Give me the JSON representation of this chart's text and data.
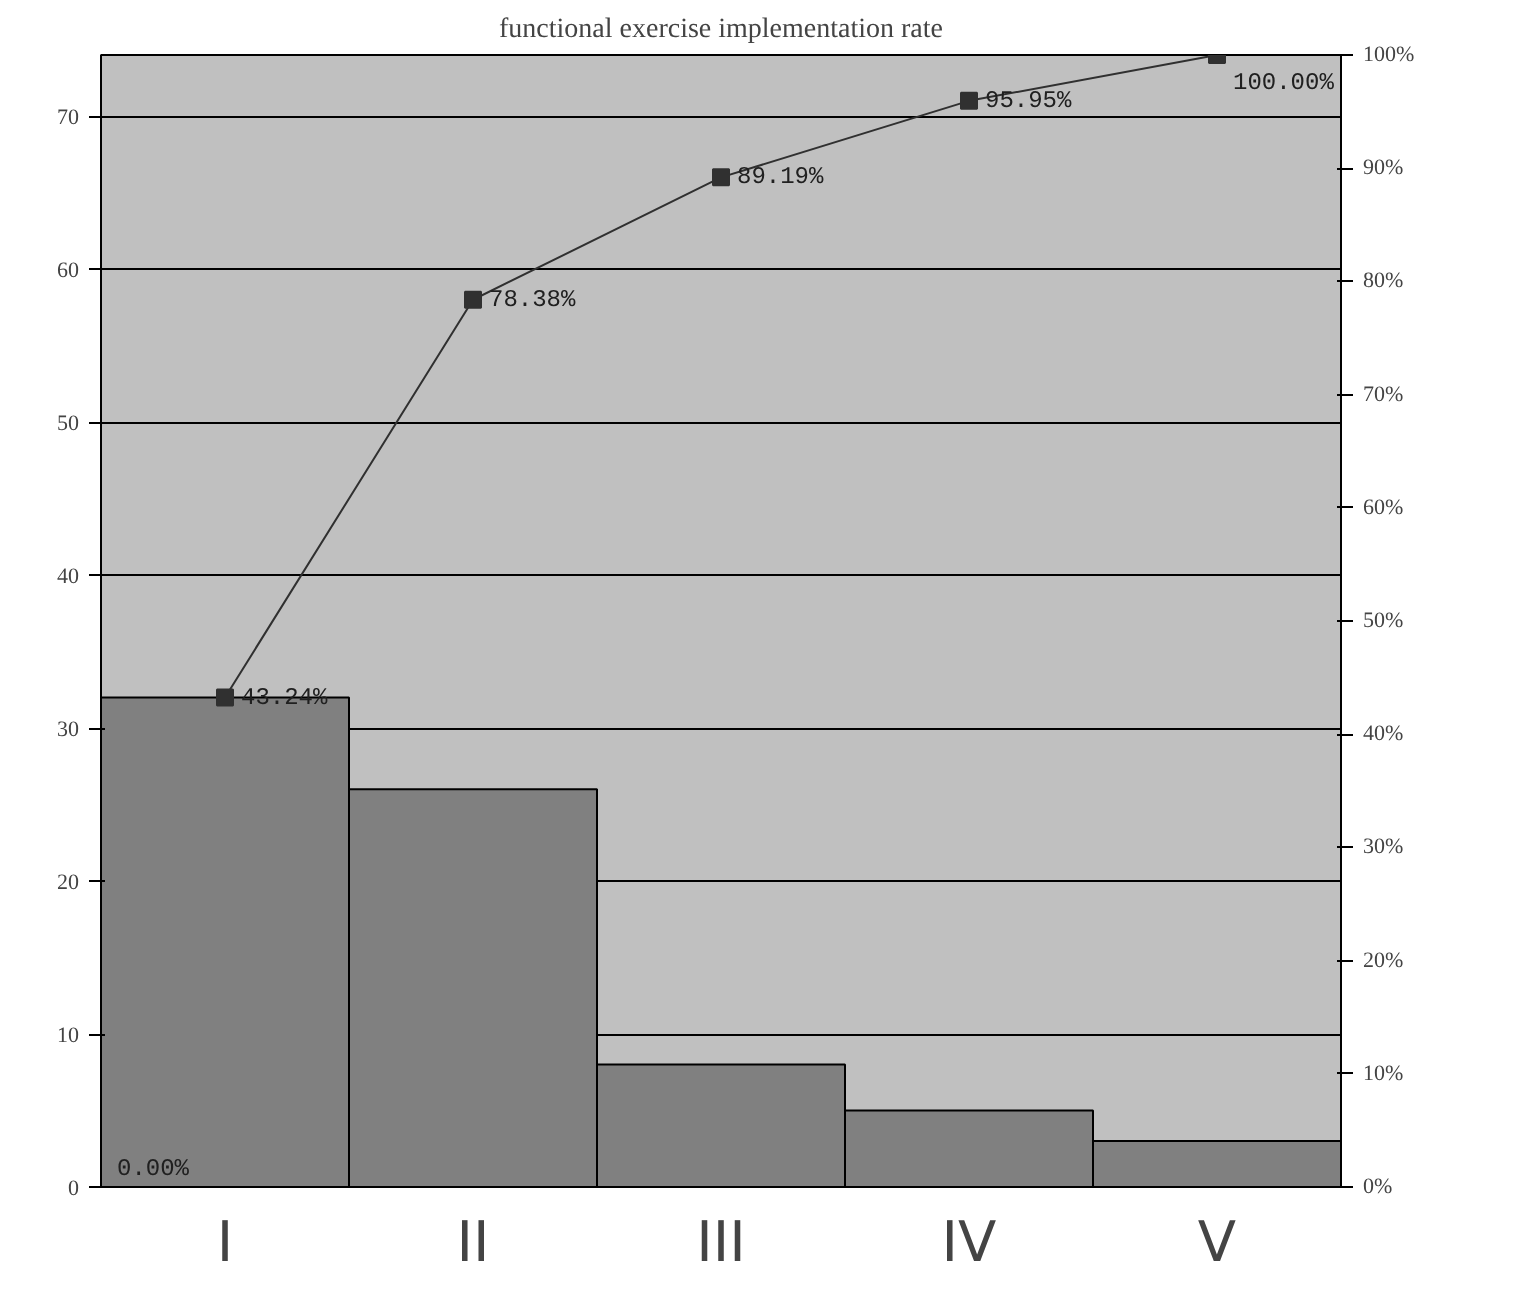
{
  "chart_data": {
    "type": "bar",
    "title": "functional exercise implementation rate",
    "categories": [
      "I",
      "II",
      "III",
      "IV",
      "V"
    ],
    "series": [
      {
        "type": "bar",
        "color": "#808080",
        "values": [
          32,
          26,
          8,
          5,
          3
        ]
      },
      {
        "type": "line",
        "axis": "y2",
        "color": "#303030",
        "values": [
          43.24,
          78.38,
          89.19,
          95.95,
          100
        ],
        "value_labels": [
          "43.24%",
          "78.38%",
          "89.19%",
          "95.95%",
          "100.00%"
        ]
      }
    ],
    "annotations": [
      {
        "text": "0.00%",
        "x": "I",
        "y": 0
      }
    ],
    "ylim": [
      0,
      74
    ],
    "yticks": [
      0,
      10,
      20,
      30,
      40,
      50,
      60,
      70
    ],
    "y2lim": [
      0,
      100
    ],
    "y2ticks": [
      {
        "value": 0,
        "label": "0%"
      },
      {
        "value": 10,
        "label": "10%"
      },
      {
        "value": 20,
        "label": "20%"
      },
      {
        "value": 30,
        "label": "30%"
      },
      {
        "value": 40,
        "label": "40%"
      },
      {
        "value": 50,
        "label": "50%"
      },
      {
        "value": 60,
        "label": "60%"
      },
      {
        "value": 70,
        "label": "70%"
      },
      {
        "value": 80,
        "label": "80%"
      },
      {
        "value": 90,
        "label": "90%"
      },
      {
        "value": 100,
        "label": "100%"
      }
    ],
    "grid": "y",
    "marker": "square",
    "line_style": "solid"
  }
}
